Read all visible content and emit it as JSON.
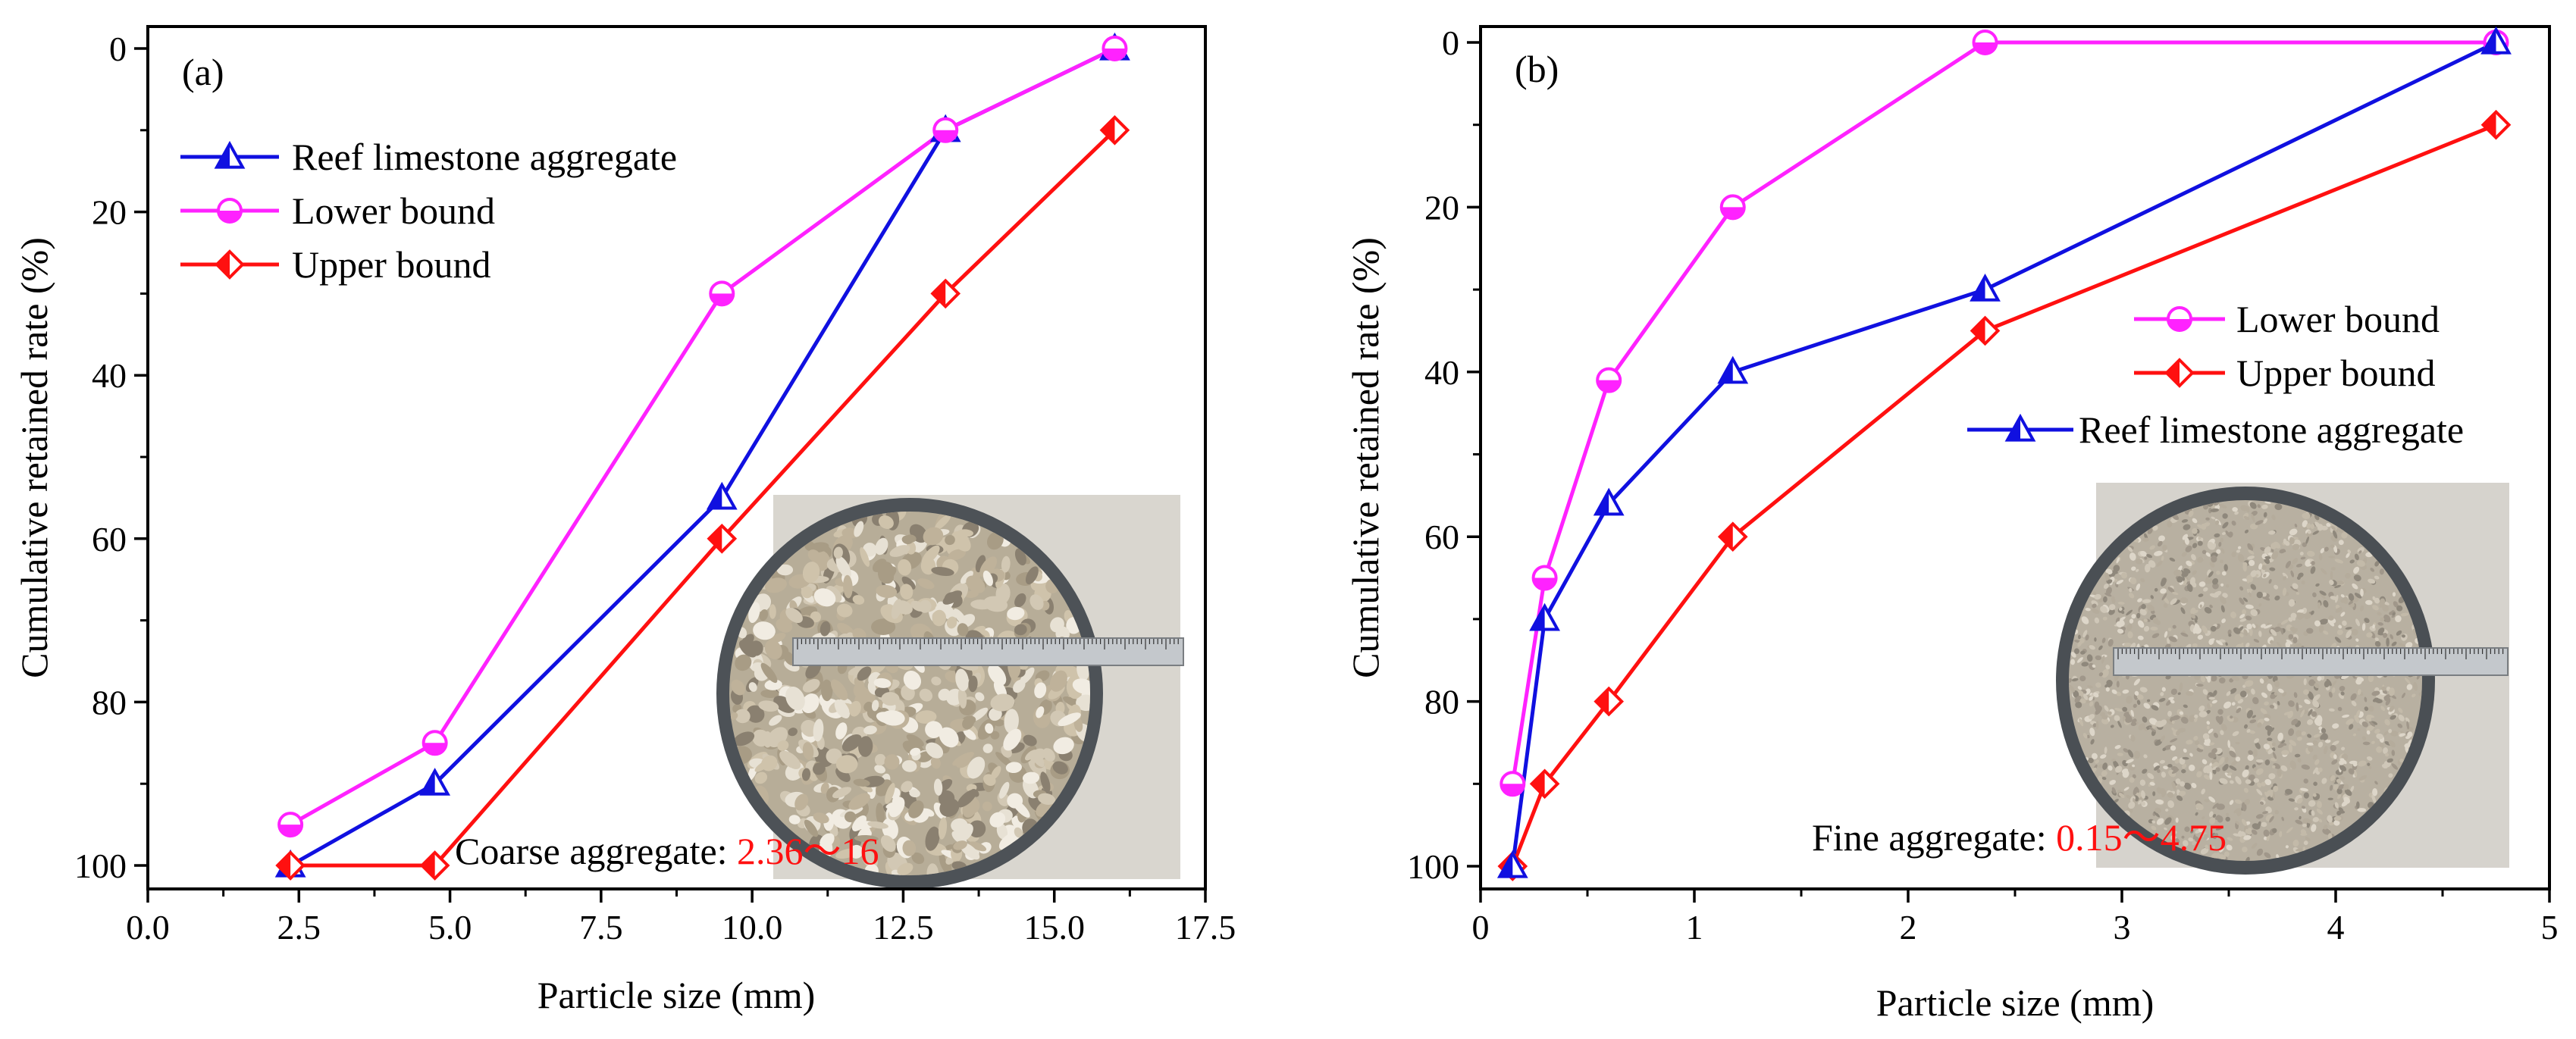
{
  "colors": {
    "reef": "#1010e0",
    "lower": "#ff22ff",
    "upper": "#ff1010",
    "caption_value": "#ff1010"
  },
  "chart_data": [
    {
      "type": "line",
      "panel_tag": "(a)",
      "xlabel": "Particle size (mm)",
      "ylabel": "Cumulative retained rate (%)",
      "xlim": [
        0,
        17.5
      ],
      "ylim": [
        100,
        0
      ],
      "y_inverted": true,
      "x_ticks": [
        0.0,
        2.5,
        5.0,
        7.5,
        10.0,
        12.5,
        15.0,
        17.5
      ],
      "x_tick_labels": [
        "0.0",
        "2.5",
        "5.0",
        "7.5",
        "10.0",
        "12.5",
        "15.0",
        "17.5"
      ],
      "y_ticks": [
        0,
        20,
        40,
        60,
        80,
        100
      ],
      "y_tick_labels": [
        "0",
        "20",
        "40",
        "60",
        "80",
        "100"
      ],
      "legend_position": "top-left",
      "series": [
        {
          "name": "Reef limestone aggregate",
          "key": "reef",
          "marker": "triangle-half",
          "x": [
            2.36,
            4.75,
            9.5,
            13.2,
            16
          ],
          "y": [
            100,
            90,
            55,
            10,
            0
          ]
        },
        {
          "name": "Lower bound",
          "key": "lower",
          "marker": "circle-half",
          "x": [
            2.36,
            4.75,
            9.5,
            13.2,
            16
          ],
          "y": [
            95,
            85,
            30,
            10,
            0
          ]
        },
        {
          "name": "Upper bound",
          "key": "upper",
          "marker": "diamond-half",
          "x": [
            2.36,
            4.75,
            9.5,
            13.2,
            16
          ],
          "y": [
            100,
            100,
            60,
            30,
            10
          ]
        }
      ],
      "inset_photo": "coarse-aggregate-in-bowl-with-ruler",
      "caption_prefix": "Coarse aggregate: ",
      "caption_value": "2.36～16"
    },
    {
      "type": "line",
      "panel_tag": "(b)",
      "xlabel": "Particle size (mm)",
      "ylabel": "Cumulative retained rate (%)",
      "xlim": [
        0,
        5
      ],
      "ylim": [
        100,
        0
      ],
      "y_inverted": true,
      "x_ticks": [
        0,
        1,
        2,
        3,
        4,
        5
      ],
      "x_tick_labels": [
        "0",
        "1",
        "2",
        "3",
        "4",
        "5"
      ],
      "y_ticks": [
        0,
        20,
        40,
        60,
        80,
        100
      ],
      "y_tick_labels": [
        "0",
        "20",
        "40",
        "60",
        "80",
        "100"
      ],
      "legend_position": "right",
      "series": [
        {
          "name": "Lower bound",
          "key": "lower",
          "marker": "circle-half",
          "x": [
            0.15,
            0.3,
            0.6,
            1.18,
            2.36,
            4.75
          ],
          "y": [
            90,
            65,
            41,
            20,
            0,
            0
          ]
        },
        {
          "name": "Upper bound",
          "key": "upper",
          "marker": "diamond-half",
          "x": [
            0.15,
            0.3,
            0.6,
            1.18,
            2.36,
            4.75
          ],
          "y": [
            100,
            90,
            80,
            60,
            35,
            10
          ]
        },
        {
          "name": "Reef limestone aggregate",
          "key": "reef",
          "marker": "triangle-half",
          "x": [
            0.15,
            0.3,
            0.6,
            1.18,
            2.36,
            4.75
          ],
          "y": [
            100,
            70,
            56,
            40,
            30,
            0
          ]
        }
      ],
      "inset_photo": "fine-aggregate-in-bowl-with-ruler",
      "caption_prefix": "Fine aggregate: ",
      "caption_value": "0.15～4.75"
    }
  ]
}
